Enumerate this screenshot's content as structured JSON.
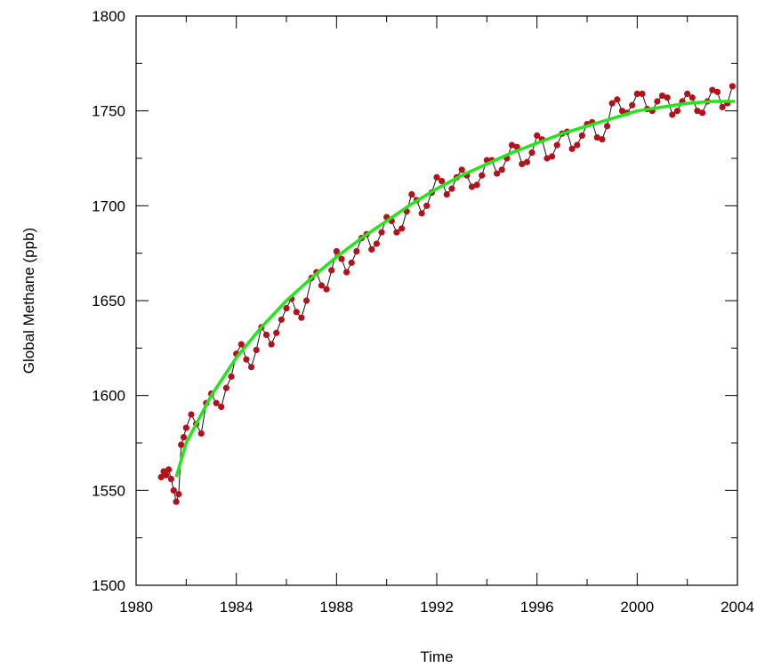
{
  "chart_data": {
    "type": "scatter",
    "title": "",
    "xlabel": "Time",
    "ylabel": "Global Methane (ppb)",
    "xlim": [
      1980,
      2004
    ],
    "ylim": [
      1500,
      1800
    ],
    "xticks": [
      1980,
      1984,
      1988,
      1992,
      1996,
      2000,
      2004
    ],
    "yticks": [
      1500,
      1550,
      1600,
      1650,
      1700,
      1750,
      1800
    ],
    "grid": false,
    "legend": "none",
    "colors": {
      "observations": "#b3121c",
      "connector": "#111111",
      "trend": "#22e61a"
    },
    "series": [
      {
        "kind": "observations",
        "x": [
          1981.0,
          1981.1,
          1981.2,
          1981.3,
          1981.4,
          1981.5,
          1981.6,
          1981.7,
          1981.8,
          1981.9,
          1982.0,
          1982.2,
          1982.4,
          1982.6,
          1982.8,
          1983.0,
          1983.2,
          1983.4,
          1983.6,
          1983.8,
          1984.0,
          1984.2,
          1984.4,
          1984.6,
          1984.8,
          1985.0,
          1985.2,
          1985.4,
          1985.6,
          1985.8,
          1986.0,
          1986.2,
          1986.4,
          1986.6,
          1986.8,
          1987.0,
          1987.2,
          1987.4,
          1987.6,
          1987.8,
          1988.0,
          1988.2,
          1988.4,
          1988.6,
          1988.8,
          1989.0,
          1989.2,
          1989.4,
          1989.6,
          1989.8,
          1990.0,
          1990.2,
          1990.4,
          1990.6,
          1990.8,
          1991.0,
          1991.2,
          1991.4,
          1991.6,
          1991.8,
          1992.0,
          1992.2,
          1992.4,
          1992.6,
          1992.8,
          1993.0,
          1993.2,
          1993.4,
          1993.6,
          1993.8,
          1994.0,
          1994.2,
          1994.4,
          1994.6,
          1994.8,
          1995.0,
          1995.2,
          1995.4,
          1995.6,
          1995.8,
          1996.0,
          1996.2,
          1996.4,
          1996.6,
          1996.8,
          1997.0,
          1997.2,
          1997.4,
          1997.6,
          1997.8,
          1998.0,
          1998.2,
          1998.4,
          1998.6,
          1998.8,
          1999.0,
          1999.2,
          1999.4,
          1999.6,
          1999.8,
          2000.0,
          2000.2,
          2000.4,
          2000.6,
          2000.8,
          2001.0,
          2001.2,
          2001.4,
          2001.6,
          2001.8,
          2002.0,
          2002.2,
          2002.4,
          2002.6,
          2002.8,
          2003.0,
          2003.2,
          2003.4,
          2003.6,
          2003.8
        ],
        "y": [
          1557,
          1560,
          1558,
          1561,
          1556,
          1550,
          1544,
          1548,
          1574,
          1578,
          1583,
          1590,
          1585,
          1580,
          1596,
          1601,
          1596,
          1594,
          1604,
          1610,
          1622,
          1627,
          1619,
          1615,
          1624,
          1636,
          1632,
          1627,
          1633,
          1640,
          1646,
          1651,
          1644,
          1641,
          1650,
          1662,
          1665,
          1658,
          1656,
          1666,
          1676,
          1672,
          1665,
          1670,
          1676,
          1683,
          1685,
          1677,
          1680,
          1686,
          1694,
          1692,
          1686,
          1688,
          1697,
          1706,
          1703,
          1696,
          1700,
          1707,
          1715,
          1713,
          1706,
          1709,
          1715,
          1719,
          1716,
          1710,
          1711,
          1716,
          1724,
          1724,
          1717,
          1719,
          1725,
          1732,
          1731,
          1722,
          1723,
          1728,
          1737,
          1735,
          1725,
          1726,
          1732,
          1738,
          1739,
          1730,
          1732,
          1737,
          1743,
          1744,
          1736,
          1735,
          1742,
          1754,
          1756,
          1750,
          1749,
          1753,
          1759,
          1759,
          1751,
          1750,
          1755,
          1758,
          1757,
          1748,
          1750,
          1755,
          1759,
          1757,
          1750,
          1749,
          1755,
          1761,
          1760,
          1752,
          1754,
          1763
        ]
      },
      {
        "kind": "trend",
        "x": [
          1981.6,
          1982,
          1983,
          1984,
          1985,
          1986,
          1987,
          1988,
          1989,
          1990,
          1991,
          1992,
          1993,
          1994,
          1995,
          1996,
          1997,
          1998,
          1999,
          2000,
          2001,
          2002,
          2003,
          2003.9
        ],
        "y": [
          1557,
          1575,
          1600,
          1620,
          1636,
          1650,
          1662,
          1673,
          1683,
          1692,
          1701,
          1709,
          1716,
          1722,
          1728,
          1733,
          1738,
          1742,
          1746,
          1750,
          1752,
          1754,
          1755,
          1755
        ]
      }
    ]
  }
}
